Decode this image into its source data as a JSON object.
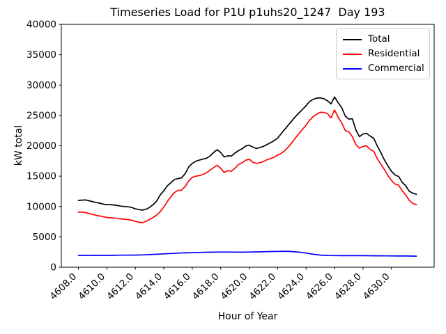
{
  "chart_data": {
    "type": "line",
    "title": "Timeseries Load for P1U p1uhs20_1247  Day 193",
    "xlabel": "Hour of Year",
    "ylabel": "kW total",
    "xlim": [
      4606.8,
      4633.0
    ],
    "ylim": [
      0,
      40000
    ],
    "xticks": [
      4608,
      4610,
      4612,
      4614,
      4616,
      4618,
      4620,
      4622,
      4624,
      4626,
      4628,
      4630
    ],
    "yticks": [
      0,
      5000,
      10000,
      15000,
      20000,
      25000,
      30000,
      35000,
      40000
    ],
    "grid": false,
    "legend": {
      "position": "upper-right"
    },
    "series": [
      {
        "name": "Total",
        "color": "#000000",
        "points": [
          [
            4608.0,
            11000
          ],
          [
            4608.25,
            11050
          ],
          [
            4608.5,
            11080
          ],
          [
            4608.75,
            10950
          ],
          [
            4609.0,
            10800
          ],
          [
            4609.25,
            10650
          ],
          [
            4609.5,
            10550
          ],
          [
            4609.75,
            10400
          ],
          [
            4610.0,
            10300
          ],
          [
            4610.25,
            10300
          ],
          [
            4610.5,
            10250
          ],
          [
            4610.75,
            10150
          ],
          [
            4611.0,
            10050
          ],
          [
            4611.25,
            10000
          ],
          [
            4611.5,
            9950
          ],
          [
            4611.75,
            9850
          ],
          [
            4612.0,
            9600
          ],
          [
            4612.25,
            9500
          ],
          [
            4612.5,
            9400
          ],
          [
            4612.75,
            9550
          ],
          [
            4613.0,
            9850
          ],
          [
            4613.25,
            10300
          ],
          [
            4613.5,
            10900
          ],
          [
            4613.75,
            11900
          ],
          [
            4614.0,
            12600
          ],
          [
            4614.25,
            13400
          ],
          [
            4614.5,
            13900
          ],
          [
            4614.75,
            14450
          ],
          [
            4615.0,
            14600
          ],
          [
            4615.25,
            14700
          ],
          [
            4615.5,
            15400
          ],
          [
            4615.75,
            16500
          ],
          [
            4616.0,
            17100
          ],
          [
            4616.25,
            17450
          ],
          [
            4616.5,
            17650
          ],
          [
            4616.75,
            17800
          ],
          [
            4617.0,
            17950
          ],
          [
            4617.25,
            18300
          ],
          [
            4617.5,
            18900
          ],
          [
            4617.75,
            19350
          ],
          [
            4618.0,
            18900
          ],
          [
            4618.25,
            18150
          ],
          [
            4618.5,
            18350
          ],
          [
            4618.75,
            18300
          ],
          [
            4619.0,
            18800
          ],
          [
            4619.25,
            19200
          ],
          [
            4619.5,
            19500
          ],
          [
            4619.75,
            19950
          ],
          [
            4620.0,
            20100
          ],
          [
            4620.25,
            19800
          ],
          [
            4620.5,
            19550
          ],
          [
            4620.75,
            19700
          ],
          [
            4621.0,
            19900
          ],
          [
            4621.25,
            20200
          ],
          [
            4621.5,
            20500
          ],
          [
            4621.75,
            20850
          ],
          [
            4622.0,
            21250
          ],
          [
            4622.25,
            22000
          ],
          [
            4622.5,
            22700
          ],
          [
            4622.75,
            23400
          ],
          [
            4623.0,
            24100
          ],
          [
            4623.25,
            24800
          ],
          [
            4623.5,
            25400
          ],
          [
            4623.75,
            26000
          ],
          [
            4624.0,
            26600
          ],
          [
            4624.25,
            27300
          ],
          [
            4624.5,
            27650
          ],
          [
            4624.75,
            27850
          ],
          [
            4625.0,
            27900
          ],
          [
            4625.25,
            27750
          ],
          [
            4625.5,
            27400
          ],
          [
            4625.75,
            26900
          ],
          [
            4626.0,
            28050
          ],
          [
            4626.25,
            27100
          ],
          [
            4626.5,
            26300
          ],
          [
            4626.75,
            24900
          ],
          [
            4627.0,
            24400
          ],
          [
            4627.25,
            24450
          ],
          [
            4627.5,
            22600
          ],
          [
            4627.75,
            21500
          ],
          [
            4628.0,
            21950
          ],
          [
            4628.25,
            22050
          ],
          [
            4628.5,
            21600
          ],
          [
            4628.75,
            21250
          ],
          [
            4629.0,
            20000
          ],
          [
            4629.25,
            18900
          ],
          [
            4629.5,
            17700
          ],
          [
            4629.75,
            16700
          ],
          [
            4630.0,
            15800
          ],
          [
            4630.25,
            15200
          ],
          [
            4630.5,
            14950
          ],
          [
            4630.75,
            14000
          ],
          [
            4631.0,
            13400
          ],
          [
            4631.25,
            12500
          ],
          [
            4631.5,
            12200
          ],
          [
            4631.75,
            12000
          ]
        ]
      },
      {
        "name": "Residential",
        "color": "#ff0000",
        "points": [
          [
            4608.0,
            9050
          ],
          [
            4608.25,
            9080
          ],
          [
            4608.5,
            9000
          ],
          [
            4608.75,
            8850
          ],
          [
            4609.0,
            8700
          ],
          [
            4609.25,
            8550
          ],
          [
            4609.5,
            8450
          ],
          [
            4609.75,
            8300
          ],
          [
            4610.0,
            8200
          ],
          [
            4610.25,
            8150
          ],
          [
            4610.5,
            8100
          ],
          [
            4610.75,
            8000
          ],
          [
            4611.0,
            7950
          ],
          [
            4611.25,
            7900
          ],
          [
            4611.5,
            7850
          ],
          [
            4611.75,
            7750
          ],
          [
            4612.0,
            7550
          ],
          [
            4612.25,
            7400
          ],
          [
            4612.5,
            7350
          ],
          [
            4612.75,
            7550
          ],
          [
            4613.0,
            7850
          ],
          [
            4613.25,
            8200
          ],
          [
            4613.5,
            8600
          ],
          [
            4613.75,
            9150
          ],
          [
            4614.0,
            9900
          ],
          [
            4614.25,
            10800
          ],
          [
            4614.5,
            11600
          ],
          [
            4614.75,
            12300
          ],
          [
            4615.0,
            12650
          ],
          [
            4615.25,
            12700
          ],
          [
            4615.5,
            13300
          ],
          [
            4615.75,
            14200
          ],
          [
            4616.0,
            14800
          ],
          [
            4616.25,
            15000
          ],
          [
            4616.5,
            15100
          ],
          [
            4616.75,
            15250
          ],
          [
            4617.0,
            15550
          ],
          [
            4617.25,
            16000
          ],
          [
            4617.5,
            16400
          ],
          [
            4617.75,
            16800
          ],
          [
            4618.0,
            16300
          ],
          [
            4618.25,
            15600
          ],
          [
            4618.5,
            15900
          ],
          [
            4618.75,
            15800
          ],
          [
            4619.0,
            16300
          ],
          [
            4619.25,
            16900
          ],
          [
            4619.5,
            17200
          ],
          [
            4619.75,
            17600
          ],
          [
            4620.0,
            17800
          ],
          [
            4620.25,
            17300
          ],
          [
            4620.5,
            17100
          ],
          [
            4620.75,
            17200
          ],
          [
            4621.0,
            17400
          ],
          [
            4621.25,
            17700
          ],
          [
            4621.5,
            17900
          ],
          [
            4621.75,
            18100
          ],
          [
            4622.0,
            18450
          ],
          [
            4622.25,
            18750
          ],
          [
            4622.5,
            19200
          ],
          [
            4622.75,
            19800
          ],
          [
            4623.0,
            20500
          ],
          [
            4623.25,
            21300
          ],
          [
            4623.5,
            22000
          ],
          [
            4623.75,
            22700
          ],
          [
            4624.0,
            23400
          ],
          [
            4624.25,
            24200
          ],
          [
            4624.5,
            24800
          ],
          [
            4624.75,
            25200
          ],
          [
            4625.0,
            25500
          ],
          [
            4625.25,
            25500
          ],
          [
            4625.5,
            25300
          ],
          [
            4625.75,
            24600
          ],
          [
            4626.0,
            25900
          ],
          [
            4626.25,
            24700
          ],
          [
            4626.5,
            23800
          ],
          [
            4626.75,
            22500
          ],
          [
            4627.0,
            22300
          ],
          [
            4627.25,
            21500
          ],
          [
            4627.5,
            20200
          ],
          [
            4627.75,
            19600
          ],
          [
            4628.0,
            19900
          ],
          [
            4628.25,
            20000
          ],
          [
            4628.5,
            19400
          ],
          [
            4628.75,
            19100
          ],
          [
            4629.0,
            17900
          ],
          [
            4629.25,
            17000
          ],
          [
            4629.5,
            16100
          ],
          [
            4629.75,
            15100
          ],
          [
            4630.0,
            14300
          ],
          [
            4630.25,
            13700
          ],
          [
            4630.5,
            13500
          ],
          [
            4630.75,
            12600
          ],
          [
            4631.0,
            11900
          ],
          [
            4631.25,
            11000
          ],
          [
            4631.5,
            10500
          ],
          [
            4631.75,
            10300
          ]
        ]
      },
      {
        "name": "Commercial",
        "color": "#0000ff",
        "points": [
          [
            4608.0,
            1950
          ],
          [
            4608.5,
            1945
          ],
          [
            4609.0,
            1940
          ],
          [
            4609.5,
            1945
          ],
          [
            4610.0,
            1950
          ],
          [
            4610.5,
            1960
          ],
          [
            4611.0,
            1980
          ],
          [
            4611.5,
            1990
          ],
          [
            4612.0,
            2000
          ],
          [
            4612.5,
            2030
          ],
          [
            4613.0,
            2070
          ],
          [
            4613.5,
            2130
          ],
          [
            4614.0,
            2200
          ],
          [
            4614.5,
            2260
          ],
          [
            4615.0,
            2310
          ],
          [
            4615.5,
            2360
          ],
          [
            4616.0,
            2400
          ],
          [
            4616.5,
            2430
          ],
          [
            4617.0,
            2460
          ],
          [
            4617.5,
            2480
          ],
          [
            4618.0,
            2500
          ],
          [
            4618.5,
            2500
          ],
          [
            4619.0,
            2490
          ],
          [
            4619.5,
            2480
          ],
          [
            4620.0,
            2500
          ],
          [
            4620.5,
            2520
          ],
          [
            4621.0,
            2550
          ],
          [
            4621.5,
            2580
          ],
          [
            4622.0,
            2600
          ],
          [
            4622.5,
            2620
          ],
          [
            4623.0,
            2580
          ],
          [
            4623.5,
            2470
          ],
          [
            4624.0,
            2330
          ],
          [
            4624.5,
            2130
          ],
          [
            4625.0,
            1990
          ],
          [
            4625.5,
            1930
          ],
          [
            4626.0,
            1910
          ],
          [
            4626.5,
            1900
          ],
          [
            4627.0,
            1900
          ],
          [
            4627.5,
            1900
          ],
          [
            4628.0,
            1900
          ],
          [
            4628.5,
            1890
          ],
          [
            4629.0,
            1880
          ],
          [
            4629.5,
            1870
          ],
          [
            4630.0,
            1860
          ],
          [
            4630.5,
            1850
          ],
          [
            4631.0,
            1840
          ],
          [
            4631.75,
            1820
          ]
        ]
      }
    ]
  }
}
